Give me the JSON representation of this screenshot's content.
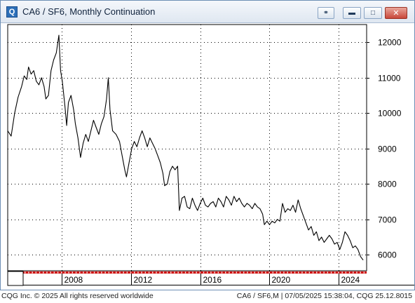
{
  "window": {
    "title": "CA6 / SF6, Monthly Continuation",
    "app_icon": "Q",
    "buttons": [
      "link-icon",
      "minimize-icon",
      "maximize-icon",
      "close-icon"
    ]
  },
  "footer": {
    "copyright": "CQG Inc. © 2025 All rights reserved worldwide",
    "info": "CA6 / SF6,M | 07/05/2025 15:38:04, CQG 25.12.8015"
  },
  "chart_data": {
    "type": "line",
    "title": "CA6 / SF6, Monthly Continuation",
    "x_ticks": [
      "2008",
      "2012",
      "2016",
      "2020",
      "2024"
    ],
    "y_ticks": [
      6000,
      7000,
      8000,
      9000,
      10000,
      11000,
      12000
    ],
    "xlim": [
      2004.9,
      2025.6
    ],
    "ylim": [
      5550,
      12500
    ],
    "grid": true,
    "colors": {
      "line": "#000000",
      "grid": "#000000",
      "axis_band": "#cc0000"
    },
    "series": [
      {
        "values": [
          [
            2004.9,
            9500
          ],
          [
            2005.1,
            9350
          ],
          [
            2005.3,
            10000
          ],
          [
            2005.5,
            10450
          ],
          [
            2005.7,
            10750
          ],
          [
            2005.85,
            11050
          ],
          [
            2006.0,
            10950
          ],
          [
            2006.1,
            11300
          ],
          [
            2006.25,
            11100
          ],
          [
            2006.4,
            11200
          ],
          [
            2006.55,
            10900
          ],
          [
            2006.7,
            10800
          ],
          [
            2006.85,
            11000
          ],
          [
            2007.0,
            10750
          ],
          [
            2007.1,
            10400
          ],
          [
            2007.25,
            10500
          ],
          [
            2007.4,
            11200
          ],
          [
            2007.55,
            11500
          ],
          [
            2007.7,
            11700
          ],
          [
            2007.85,
            12200
          ],
          [
            2007.95,
            11200
          ],
          [
            2008.05,
            10900
          ],
          [
            2008.2,
            10200
          ],
          [
            2008.3,
            9650
          ],
          [
            2008.4,
            10300
          ],
          [
            2008.55,
            10500
          ],
          [
            2008.7,
            10100
          ],
          [
            2008.8,
            9700
          ],
          [
            2008.95,
            9300
          ],
          [
            2009.1,
            8750
          ],
          [
            2009.25,
            9150
          ],
          [
            2009.4,
            9400
          ],
          [
            2009.55,
            9200
          ],
          [
            2009.7,
            9500
          ],
          [
            2009.85,
            9800
          ],
          [
            2010.0,
            9600
          ],
          [
            2010.15,
            9400
          ],
          [
            2010.3,
            9700
          ],
          [
            2010.45,
            9900
          ],
          [
            2010.6,
            10400
          ],
          [
            2010.7,
            11000
          ],
          [
            2010.8,
            10100
          ],
          [
            2010.95,
            9500
          ],
          [
            2011.15,
            9400
          ],
          [
            2011.35,
            9200
          ],
          [
            2011.5,
            8800
          ],
          [
            2011.65,
            8400
          ],
          [
            2011.75,
            8200
          ],
          [
            2011.9,
            8600
          ],
          [
            2012.05,
            9000
          ],
          [
            2012.2,
            9200
          ],
          [
            2012.35,
            9050
          ],
          [
            2012.5,
            9300
          ],
          [
            2012.65,
            9500
          ],
          [
            2012.8,
            9300
          ],
          [
            2012.95,
            9050
          ],
          [
            2013.1,
            9300
          ],
          [
            2013.25,
            9150
          ],
          [
            2013.4,
            9000
          ],
          [
            2013.55,
            8800
          ],
          [
            2013.7,
            8600
          ],
          [
            2013.85,
            8300
          ],
          [
            2013.95,
            7950
          ],
          [
            2014.1,
            8000
          ],
          [
            2014.25,
            8350
          ],
          [
            2014.4,
            8500
          ],
          [
            2014.55,
            8400
          ],
          [
            2014.7,
            8500
          ],
          [
            2014.8,
            7250
          ],
          [
            2014.95,
            7600
          ],
          [
            2015.1,
            7650
          ],
          [
            2015.25,
            7350
          ],
          [
            2015.4,
            7300
          ],
          [
            2015.55,
            7600
          ],
          [
            2015.7,
            7400
          ],
          [
            2015.85,
            7250
          ],
          [
            2016.0,
            7450
          ],
          [
            2016.15,
            7600
          ],
          [
            2016.3,
            7400
          ],
          [
            2016.45,
            7350
          ],
          [
            2016.6,
            7450
          ],
          [
            2016.75,
            7500
          ],
          [
            2016.9,
            7350
          ],
          [
            2017.05,
            7600
          ],
          [
            2017.2,
            7500
          ],
          [
            2017.35,
            7350
          ],
          [
            2017.5,
            7650
          ],
          [
            2017.65,
            7550
          ],
          [
            2017.8,
            7400
          ],
          [
            2017.95,
            7650
          ],
          [
            2018.1,
            7500
          ],
          [
            2018.25,
            7600
          ],
          [
            2018.4,
            7450
          ],
          [
            2018.55,
            7350
          ],
          [
            2018.7,
            7450
          ],
          [
            2018.85,
            7400
          ],
          [
            2019.0,
            7300
          ],
          [
            2019.15,
            7450
          ],
          [
            2019.3,
            7350
          ],
          [
            2019.45,
            7300
          ],
          [
            2019.6,
            7150
          ],
          [
            2019.7,
            6850
          ],
          [
            2019.85,
            6950
          ],
          [
            2020.0,
            6850
          ],
          [
            2020.15,
            6950
          ],
          [
            2020.3,
            6900
          ],
          [
            2020.45,
            7000
          ],
          [
            2020.6,
            6950
          ],
          [
            2020.75,
            7450
          ],
          [
            2020.9,
            7200
          ],
          [
            2021.05,
            7300
          ],
          [
            2021.2,
            7250
          ],
          [
            2021.35,
            7400
          ],
          [
            2021.5,
            7200
          ],
          [
            2021.65,
            7550
          ],
          [
            2021.8,
            7300
          ],
          [
            2021.95,
            7100
          ],
          [
            2022.1,
            6900
          ],
          [
            2022.25,
            6700
          ],
          [
            2022.4,
            6800
          ],
          [
            2022.55,
            6550
          ],
          [
            2022.7,
            6650
          ],
          [
            2022.85,
            6400
          ],
          [
            2023.0,
            6500
          ],
          [
            2023.15,
            6350
          ],
          [
            2023.3,
            6450
          ],
          [
            2023.45,
            6550
          ],
          [
            2023.6,
            6450
          ],
          [
            2023.75,
            6300
          ],
          [
            2023.9,
            6350
          ],
          [
            2024.05,
            6150
          ],
          [
            2024.2,
            6350
          ],
          [
            2024.35,
            6650
          ],
          [
            2024.5,
            6550
          ],
          [
            2024.65,
            6400
          ],
          [
            2024.8,
            6200
          ],
          [
            2024.95,
            6250
          ],
          [
            2025.1,
            6150
          ],
          [
            2025.25,
            5950
          ],
          [
            2025.4,
            5850
          ]
        ]
      }
    ]
  }
}
